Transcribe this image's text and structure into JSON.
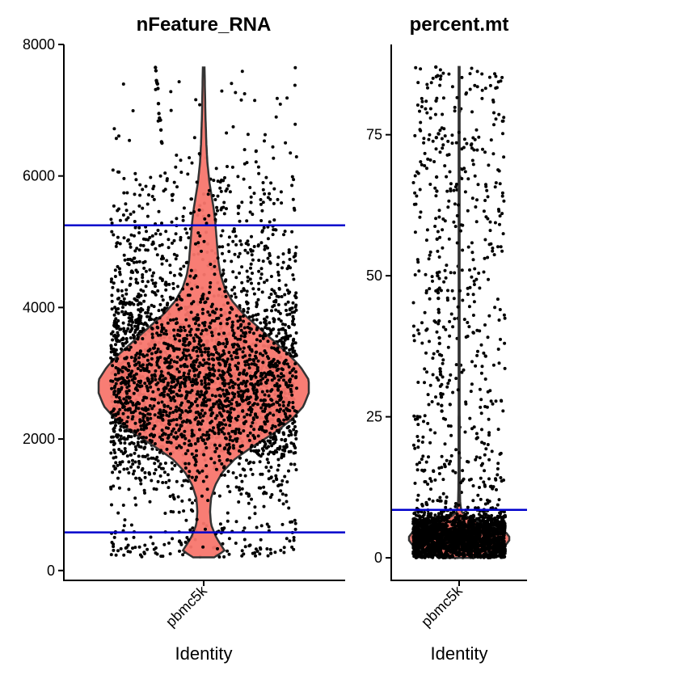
{
  "chart_data": [
    {
      "type": "violin",
      "title": "nFeature_RNA",
      "xlabel": "Identity",
      "ylabel": "",
      "categories": [
        "pbmc5k"
      ],
      "ylim": [
        -150,
        8000
      ],
      "yticks": [
        0,
        2000,
        4000,
        6000,
        8000
      ],
      "yticklabels": [
        "0",
        "2000",
        "4000",
        "6000",
        "8000"
      ],
      "fill_color": "#f8766d",
      "threshold_color": "#0000cc",
      "point_color": "#000000",
      "thresholds": [
        5250,
        580
      ],
      "density_profile": [
        [
          200,
          0.1
        ],
        [
          300,
          0.2
        ],
        [
          500,
          0.12
        ],
        [
          700,
          0.07
        ],
        [
          900,
          0.06
        ],
        [
          1100,
          0.07
        ],
        [
          1300,
          0.11
        ],
        [
          1500,
          0.18
        ],
        [
          1700,
          0.3
        ],
        [
          1900,
          0.48
        ],
        [
          2100,
          0.68
        ],
        [
          2300,
          0.84
        ],
        [
          2500,
          0.95
        ],
        [
          2700,
          1.0
        ],
        [
          2900,
          1.0
        ],
        [
          3100,
          0.92
        ],
        [
          3300,
          0.8
        ],
        [
          3500,
          0.66
        ],
        [
          3700,
          0.52
        ],
        [
          3900,
          0.38
        ],
        [
          4100,
          0.27
        ],
        [
          4300,
          0.2
        ],
        [
          4500,
          0.16
        ],
        [
          4700,
          0.14
        ],
        [
          4900,
          0.13
        ],
        [
          5100,
          0.12
        ],
        [
          5300,
          0.11
        ],
        [
          5500,
          0.095
        ],
        [
          5700,
          0.075
        ],
        [
          5900,
          0.055
        ],
        [
          6200,
          0.035
        ],
        [
          6500,
          0.025
        ],
        [
          6900,
          0.017
        ],
        [
          7300,
          0.012
        ],
        [
          7650,
          0.008
        ]
      ],
      "outliers": [
        7650,
        7600,
        7450,
        7420,
        7400,
        7330,
        7100,
        6950,
        6880,
        6850,
        6850,
        6700,
        6520,
        6500
      ]
    },
    {
      "type": "violin",
      "title": "percent.mt",
      "xlabel": "Identity",
      "ylabel": "",
      "categories": [
        "pbmc5k"
      ],
      "ylim": [
        -4,
        91
      ],
      "yticks": [
        0,
        25,
        50,
        75
      ],
      "yticklabels": [
        "0",
        "25",
        "50",
        "75"
      ],
      "fill_color": "#f8766d",
      "threshold_color": "#0000cc",
      "point_color": "#000000",
      "thresholds": [
        8.5
      ],
      "density_profile": [
        [
          0,
          0.3
        ],
        [
          1,
          0.6
        ],
        [
          2,
          0.9
        ],
        [
          3,
          1.0
        ],
        [
          4,
          1.0
        ],
        [
          5,
          0.85
        ],
        [
          6,
          0.5
        ],
        [
          7,
          0.2
        ],
        [
          8,
          0.06
        ],
        [
          9,
          0.03
        ],
        [
          10,
          0.02
        ],
        [
          12,
          0.015
        ],
        [
          15,
          0.012
        ],
        [
          20,
          0.011
        ],
        [
          30,
          0.01
        ],
        [
          50,
          0.01
        ],
        [
          70,
          0.01
        ],
        [
          87,
          0.01
        ]
      ],
      "outliers": [
        87,
        81,
        74.5,
        67.5,
        65,
        56.5,
        50.5,
        50,
        47.5,
        47,
        46,
        44,
        43.5,
        42,
        39,
        38,
        36,
        33.5,
        33,
        32.5,
        29,
        29,
        28.5,
        27,
        26
      ]
    }
  ]
}
